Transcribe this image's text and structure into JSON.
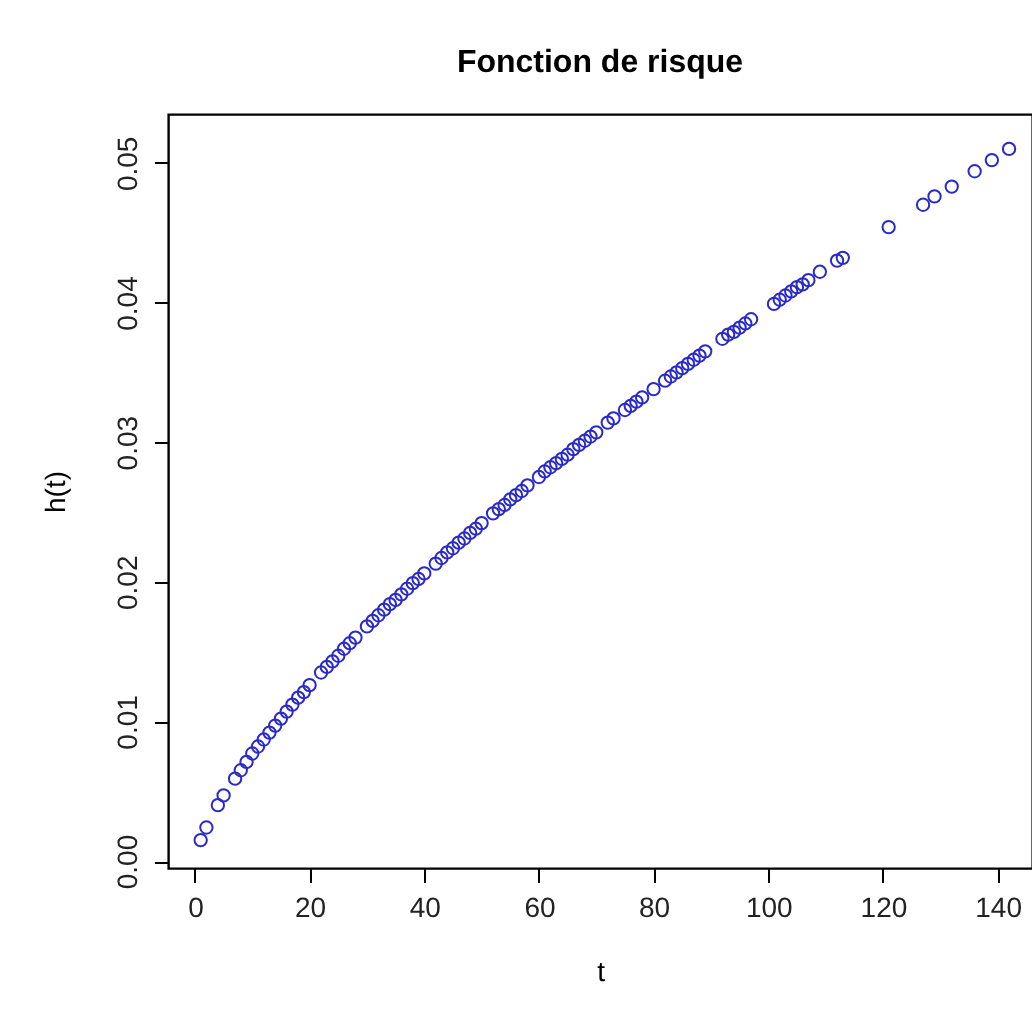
{
  "chart_data": {
    "type": "scatter",
    "title": "Fonction de risque",
    "xlabel": "t",
    "ylabel": "h(t)",
    "x": [
      1,
      2,
      4,
      5,
      7,
      8,
      9,
      10,
      11,
      12,
      13,
      14,
      15,
      16,
      17,
      18,
      19,
      20,
      22,
      23,
      24,
      25,
      26,
      27,
      28,
      30,
      31,
      32,
      33,
      34,
      35,
      36,
      37,
      38,
      39,
      40,
      42,
      43,
      44,
      45,
      46,
      47,
      48,
      49,
      50,
      52,
      53,
      54,
      55,
      56,
      57,
      58,
      60,
      61,
      62,
      63,
      64,
      65,
      66,
      67,
      68,
      69,
      70,
      72,
      73,
      75,
      76,
      77,
      78,
      80,
      82,
      83,
      84,
      85,
      86,
      87,
      88,
      89,
      92,
      93,
      94,
      95,
      96,
      97,
      101,
      102,
      103,
      104,
      105,
      106,
      107,
      109,
      112,
      113,
      121,
      127,
      129,
      132,
      136,
      139,
      142
    ],
    "series": [
      {
        "color": "#2a2ac8",
        "values": [
          0.0015,
          0.0024,
          0.004,
          0.0047,
          0.0059,
          0.0065,
          0.0071,
          0.0077,
          0.0082,
          0.0087,
          0.0092,
          0.0097,
          0.0102,
          0.0107,
          0.0112,
          0.0117,
          0.0121,
          0.0126,
          0.0135,
          0.0139,
          0.0143,
          0.0147,
          0.0152,
          0.0156,
          0.016,
          0.0168,
          0.0172,
          0.0176,
          0.018,
          0.0184,
          0.0187,
          0.0191,
          0.0195,
          0.0199,
          0.0202,
          0.0206,
          0.0213,
          0.0217,
          0.0221,
          0.0224,
          0.0228,
          0.0231,
          0.0235,
          0.0238,
          0.0242,
          0.0249,
          0.0252,
          0.0255,
          0.0259,
          0.0262,
          0.0265,
          0.0269,
          0.0275,
          0.0279,
          0.0282,
          0.0285,
          0.0288,
          0.0291,
          0.0295,
          0.0298,
          0.0301,
          0.0304,
          0.0307,
          0.0314,
          0.0317,
          0.0323,
          0.0326,
          0.0329,
          0.0332,
          0.0338,
          0.0344,
          0.0347,
          0.035,
          0.0353,
          0.0356,
          0.0359,
          0.0362,
          0.0365,
          0.0374,
          0.0377,
          0.0379,
          0.0382,
          0.0385,
          0.0388,
          0.0399,
          0.0402,
          0.0405,
          0.0408,
          0.0411,
          0.0413,
          0.0416,
          0.0422,
          0.043,
          0.0432,
          0.0454,
          0.047,
          0.0476,
          0.0483,
          0.0494,
          0.0502,
          0.051
        ]
      }
    ],
    "marker": "circle",
    "grid": false,
    "xlim": [
      -4.7,
      146
    ],
    "ylim": [
      -0.0005,
      0.0535
    ],
    "xticks": [
      0,
      20,
      40,
      60,
      80,
      100,
      120,
      140
    ],
    "yticks": [
      {
        "value": 0,
        "label": "0.00"
      },
      {
        "value": 0.01,
        "label": "0.01"
      },
      {
        "value": 0.02,
        "label": "0.02"
      },
      {
        "value": 0.03,
        "label": "0.03"
      },
      {
        "value": 0.04,
        "label": "0.04"
      },
      {
        "value": 0.05,
        "label": "0.05"
      }
    ]
  }
}
